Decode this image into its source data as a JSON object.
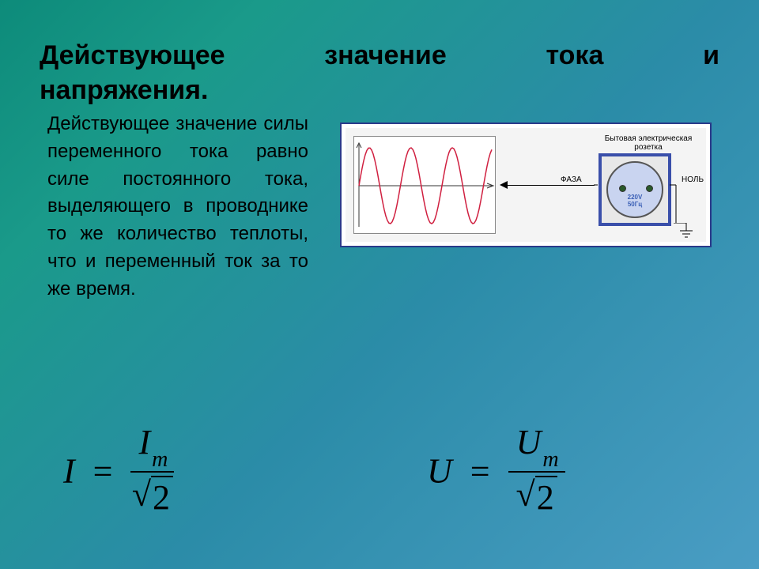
{
  "title_line1": "Действующее значение тока и",
  "title_line2": "напряжения.",
  "definition": "Действующее значение силы переменного тока равно силе постоянного тока, выделяющего в проводнике то же количество теплоты, что и переменный ток за то же время.",
  "diagram": {
    "socket_title": "Бытовая электрическая розетка",
    "phase_label": "ФАЗА",
    "neutral_label": "НОЛЬ",
    "socket_voltage": "220V",
    "socket_freq": "50Гц",
    "wave": {
      "color": "#d02040",
      "axis_color": "#333333",
      "periods": 3.2,
      "amplitude": 48,
      "width": 180,
      "height": 124
    }
  },
  "formula_I": {
    "lhs": "I",
    "num_var": "I",
    "num_sub": "m",
    "den_radicand": "2"
  },
  "formula_U": {
    "lhs": "U",
    "num_var": "U",
    "num_sub": "m",
    "den_radicand": "2"
  }
}
